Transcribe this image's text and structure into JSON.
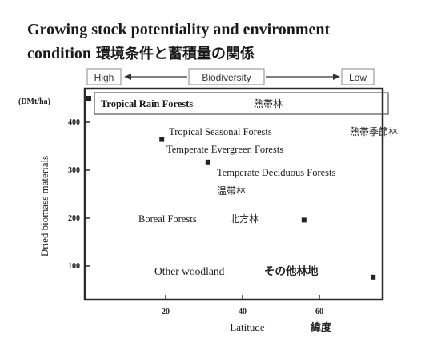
{
  "title": {
    "line1": "Growing stock potentiality and environment",
    "line2_en": "condition",
    "line2_jp": "環境条件と蓄積量の関係"
  },
  "biodiversity": {
    "high": "High",
    "label": "Biodiversity",
    "low": "Low"
  },
  "chart_data": {
    "type": "scatter",
    "xlabel": "Latitude",
    "xlabel_jp": "緯度",
    "ylabel": "Dried biomass materials",
    "yunit": "(DMt/ha)",
    "xlim": [
      0,
      75
    ],
    "ylim": [
      30,
      470
    ],
    "xticks": [
      20,
      40,
      60
    ],
    "yticks": [
      100,
      200,
      300,
      400
    ],
    "points": [
      {
        "x": 0,
        "y": 450,
        "name": "Tropical Rain Forests",
        "name_jp": "熱帯林"
      },
      {
        "x": 19,
        "y": 364,
        "name": "Temperate Evergreen Forests",
        "name_jp": ""
      },
      {
        "x": 31,
        "y": 317,
        "name": "Temperate Deciduous Forests",
        "name_jp": "温帯林"
      },
      {
        "x": 56,
        "y": 196,
        "name": "Boreal Forests",
        "name_jp": "北方林"
      },
      {
        "x": 74,
        "y": 77,
        "name": "Other woodland",
        "name_jp": "その他林地"
      }
    ],
    "annotations": [
      {
        "text": "Tropical Seasonal Forests",
        "text_jp": "熱帯季節林"
      }
    ]
  }
}
